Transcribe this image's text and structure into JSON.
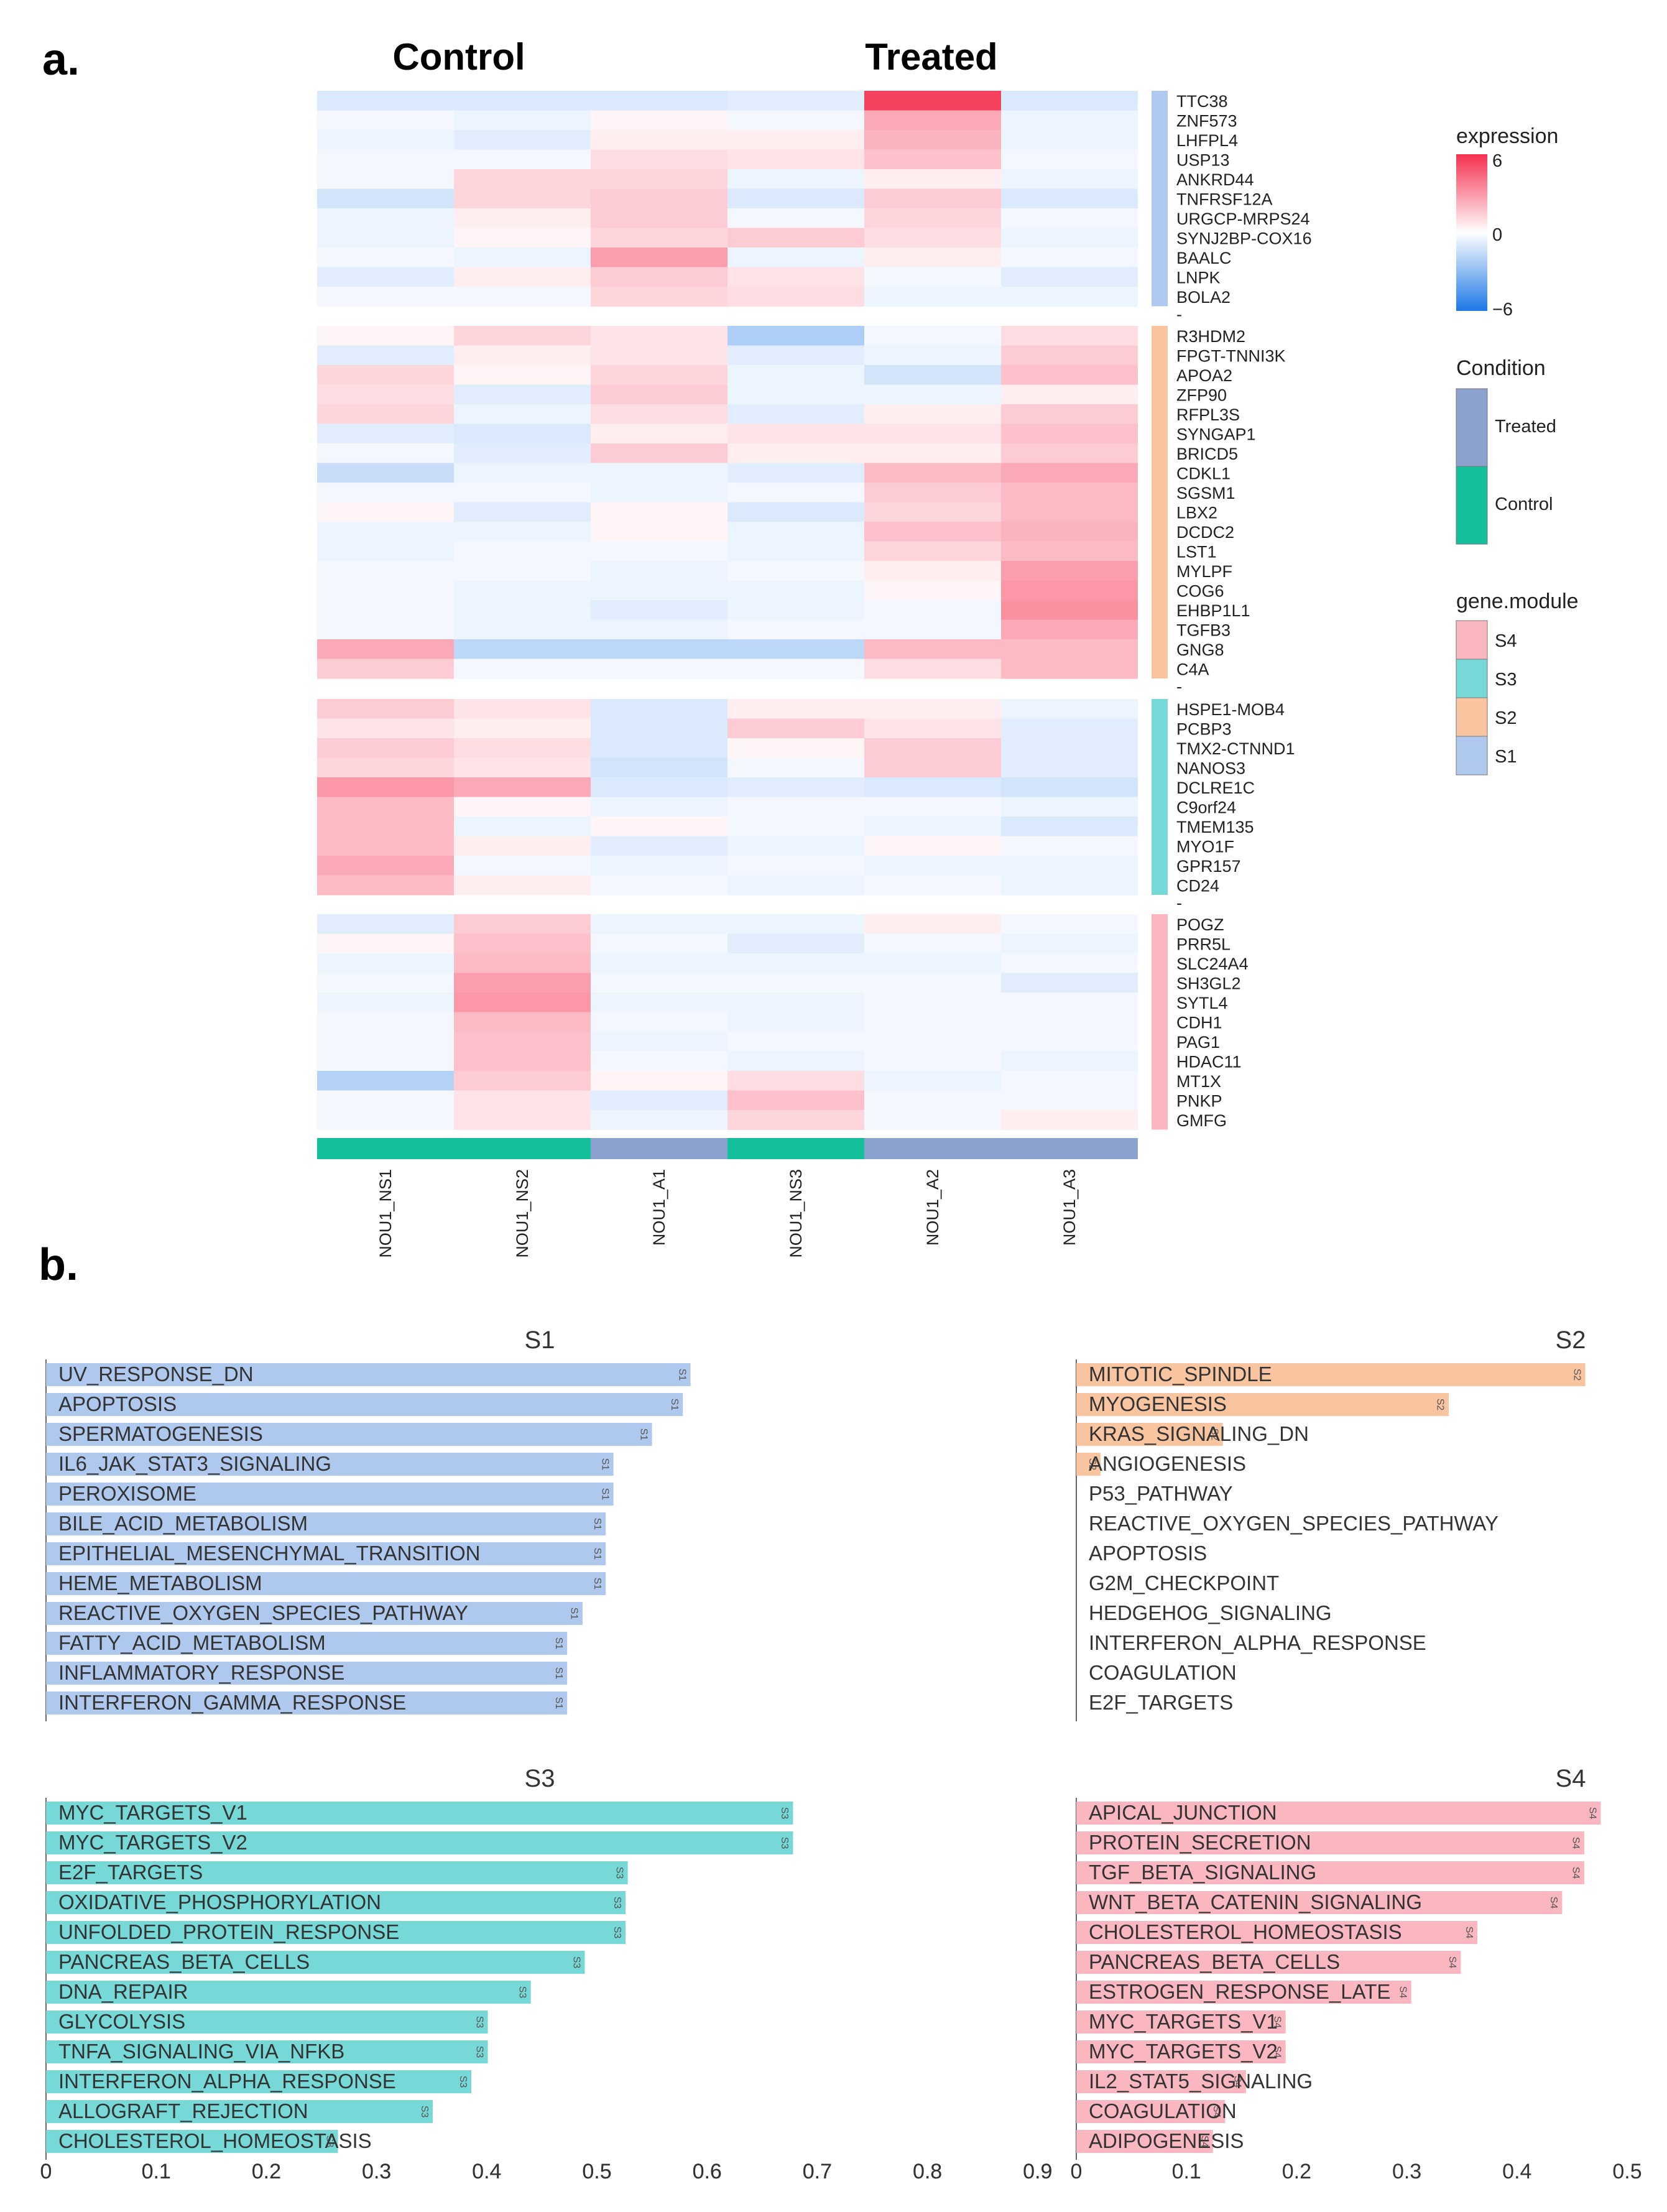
{
  "panels": {
    "a_label": "a.",
    "b_label": "b."
  },
  "colors": {
    "module": {
      "S1": "#aec8ee",
      "S2": "#f9c4a0",
      "S3": "#76d9d7",
      "S4": "#fbb7c0"
    },
    "condition": {
      "Treated": "#8ca2ce",
      "Control": "#14bf9b"
    },
    "expression_high": "#f5304f",
    "expression_mid": "#ffffff",
    "expression_low": "#1e78e6"
  },
  "chart_data": [
    {
      "type": "heatmap",
      "group_headers": [
        "Control",
        "Treated"
      ],
      "samples": [
        "NOU1_NS1",
        "NOU1_NS2",
        "NOU1_A1",
        "NOU1_NS3",
        "NOU1_A2",
        "NOU1_A3"
      ],
      "conditions": [
        "Control",
        "Control",
        "Treated",
        "Control",
        "Treated",
        "Treated"
      ],
      "separator_label": "-",
      "value_range": [
        -6,
        6
      ],
      "legend": {
        "expression_title": "expression",
        "expression_ticks": [
          "6",
          "0",
          "−6"
        ],
        "condition_title": "Condition",
        "condition_items": [
          "Treated",
          "Control"
        ],
        "module_title": "gene.module",
        "module_items": [
          "S4",
          "S3",
          "S2",
          "S1"
        ]
      },
      "blocks": [
        {
          "module": "S1",
          "genes": [
            "TTC38",
            "ZNF573",
            "LHFPL4",
            "USP13",
            "ANKRD44",
            "TNFRSF12A",
            "URGCP-MRPS24",
            "SYNJ2BP-COX16",
            "BAALC",
            "LNPK",
            "BOLA2"
          ],
          "values": [
            [
              -1,
              -1,
              -1,
              -0.8,
              5.5,
              -1
            ],
            [
              -0.3,
              -0.5,
              0.3,
              -0.3,
              2.5,
              -0.5
            ],
            [
              -0.5,
              -0.8,
              0.5,
              0.5,
              2.2,
              -0.5
            ],
            [
              -0.3,
              -0.3,
              1.0,
              0.8,
              1.8,
              -0.3
            ],
            [
              -0.3,
              1.2,
              1.2,
              -0.5,
              0.5,
              -0.5
            ],
            [
              -1.2,
              1.2,
              1.5,
              -1.0,
              1.5,
              -1.0
            ],
            [
              -0.5,
              0.5,
              1.5,
              -0.3,
              1.2,
              -0.3
            ],
            [
              -0.5,
              0.3,
              1.2,
              1.5,
              1.0,
              -0.5
            ],
            [
              -0.3,
              -0.5,
              2.8,
              -0.5,
              0.5,
              -0.3
            ],
            [
              -0.8,
              0.5,
              1.5,
              0.8,
              -0.3,
              -0.8
            ],
            [
              -0.3,
              -0.3,
              1.2,
              1.0,
              -0.5,
              -0.5
            ]
          ]
        },
        {
          "module": "S2",
          "genes": [
            "R3HDM2",
            "FPGT-TNNI3K",
            "APOA2",
            "ZFP90",
            "RFPL3S",
            "SYNGAP1",
            "BRICD5",
            "CDKL1",
            "SGSM1",
            "LBX2",
            "DCDC2",
            "LST1",
            "MYLPF",
            "COG6",
            "EHBP1L1",
            "TGFB3",
            "GNG8",
            "C4A"
          ],
          "values": [
            [
              0.3,
              1.2,
              0.8,
              -2.2,
              -0.3,
              1.0
            ],
            [
              -0.8,
              0.5,
              0.8,
              -0.8,
              -0.5,
              1.5
            ],
            [
              1.2,
              0.3,
              1.2,
              -0.5,
              -1.2,
              1.8
            ],
            [
              1.0,
              -0.8,
              1.5,
              -0.5,
              -0.5,
              0.5
            ],
            [
              1.2,
              -0.5,
              1.0,
              -0.8,
              0.5,
              1.5
            ],
            [
              -0.8,
              -1.0,
              0.5,
              0.8,
              0.8,
              1.8
            ],
            [
              -0.3,
              -0.8,
              1.5,
              0.5,
              0.5,
              1.5
            ],
            [
              -1.5,
              -0.5,
              -0.5,
              -0.8,
              2.0,
              2.5
            ],
            [
              -0.3,
              -0.3,
              -0.5,
              -0.3,
              1.5,
              2.0
            ],
            [
              0.3,
              -0.8,
              0.3,
              -1.0,
              1.2,
              2.0
            ],
            [
              -0.5,
              -0.5,
              0.3,
              -0.5,
              1.8,
              2.2
            ],
            [
              -0.5,
              -0.3,
              -0.3,
              -0.5,
              1.2,
              2.0
            ],
            [
              -0.3,
              -0.3,
              -0.5,
              -0.3,
              0.5,
              2.8
            ],
            [
              -0.3,
              -0.5,
              -0.5,
              -0.5,
              0.3,
              3.0
            ],
            [
              -0.3,
              -0.5,
              -0.8,
              -0.5,
              -0.3,
              3.2
            ],
            [
              -0.3,
              -0.5,
              -0.5,
              -0.3,
              -0.3,
              2.5
            ],
            [
              2.5,
              -1.8,
              -1.8,
              -1.8,
              2.0,
              2.0
            ],
            [
              1.5,
              -0.3,
              -0.3,
              -0.3,
              1.0,
              2.0
            ]
          ]
        },
        {
          "module": "S3",
          "genes": [
            "HSPE1-MOB4",
            "PCBP3",
            "TMX2-CTNND1",
            "NANOS3",
            "DCLRE1C",
            "C9orf24",
            "TMEM135",
            "MYO1F",
            "GPR157",
            "CD24"
          ],
          "values": [
            [
              1.5,
              0.8,
              -1.0,
              0.5,
              0.5,
              -0.5
            ],
            [
              0.8,
              0.5,
              -1.0,
              1.5,
              0.8,
              -0.8
            ],
            [
              1.5,
              1.0,
              -1.0,
              0.3,
              1.5,
              -0.8
            ],
            [
              1.2,
              0.8,
              -1.2,
              -0.3,
              1.5,
              -0.8
            ],
            [
              3.0,
              2.5,
              -1.0,
              -0.8,
              -1.0,
              -1.2
            ],
            [
              2.0,
              0.3,
              -0.5,
              -0.3,
              -0.3,
              -0.5
            ],
            [
              2.0,
              -0.5,
              0.3,
              -0.3,
              -0.5,
              -1.0
            ],
            [
              2.0,
              0.5,
              -0.8,
              -0.5,
              0.3,
              -0.3
            ],
            [
              2.5,
              -0.3,
              -0.5,
              -0.3,
              -0.5,
              -0.5
            ],
            [
              2.0,
              0.5,
              -0.3,
              -0.5,
              -0.3,
              -0.5
            ]
          ]
        },
        {
          "module": "S4",
          "genes": [
            "POGZ",
            "PRR5L",
            "SLC24A4",
            "SH3GL2",
            "SYTL4",
            "CDH1",
            "PAG1",
            "HDAC11",
            "MT1X",
            "PNKP",
            "GMFG"
          ],
          "values": [
            [
              -0.8,
              1.5,
              -0.5,
              -0.5,
              0.5,
              -0.3
            ],
            [
              0.3,
              1.8,
              -0.3,
              -0.8,
              -0.3,
              -0.5
            ],
            [
              -0.5,
              2.0,
              -0.5,
              -0.5,
              -0.5,
              -0.3
            ],
            [
              -0.3,
              2.8,
              -0.3,
              -0.3,
              -0.3,
              -0.8
            ],
            [
              -0.5,
              3.0,
              -0.5,
              -0.5,
              -0.3,
              -0.3
            ],
            [
              -0.3,
              2.0,
              -0.3,
              -0.5,
              -0.3,
              -0.3
            ],
            [
              -0.3,
              1.8,
              -0.5,
              -0.3,
              -0.3,
              -0.3
            ],
            [
              -0.3,
              1.8,
              -0.3,
              -0.5,
              -0.3,
              -0.5
            ],
            [
              -2.0,
              1.5,
              0.3,
              1.0,
              -0.5,
              -0.3
            ],
            [
              -0.3,
              0.8,
              -0.8,
              1.8,
              -0.3,
              -0.3
            ],
            [
              -0.3,
              0.8,
              -0.5,
              1.2,
              -0.3,
              0.5
            ]
          ]
        }
      ]
    },
    {
      "type": "bar",
      "orientation": "horizontal",
      "title": "S1",
      "tag": "S1",
      "xlim": [
        0,
        0.9
      ],
      "xticks": [
        "0",
        "0.1",
        "0.2",
        "0.3",
        "0.4",
        "0.5",
        "0.6",
        "0.7",
        "0.8",
        "0.9"
      ],
      "categories": [
        "UV_RESPONSE_DN",
        "APOPTOSIS",
        "SPERMATOGENESIS",
        "IL6_JAK_STAT3_SIGNALING",
        "PEROXISOME",
        "BILE_ACID_METABOLISM",
        "EPITHELIAL_MESENCHYMAL_TRANSITION",
        "HEME_METABOLISM",
        "REACTIVE_OXYGEN_SPECIES_PATHWAY",
        "FATTY_ACID_METABOLISM",
        "INFLAMMATORY_RESPONSE",
        "INTERFERON_GAMMA_RESPONSE"
      ],
      "values": [
        0.585,
        0.578,
        0.55,
        0.515,
        0.515,
        0.508,
        0.508,
        0.508,
        0.487,
        0.473,
        0.473,
        0.473
      ]
    },
    {
      "type": "bar",
      "orientation": "horizontal",
      "title": "S2",
      "tag": "S2",
      "xlim": [
        0,
        0.5
      ],
      "categories": [
        "MITOTIC_SPINDLE",
        "MYOGENESIS",
        "KRAS_SIGNALING_DN",
        "ANGIOGENESIS",
        "P53_PATHWAY",
        "REACTIVE_OXYGEN_SPECIES_PATHWAY",
        "APOPTOSIS",
        "G2M_CHECKPOINT",
        "HEDGEHOG_SIGNALING",
        "INTERFERON_ALPHA_RESPONSE",
        "COAGULATION",
        "E2F_TARGETS"
      ],
      "values": [
        0.462,
        0.338,
        0.133,
        0.022,
        0,
        0,
        0,
        0,
        0,
        0,
        0,
        0
      ]
    },
    {
      "type": "bar",
      "orientation": "horizontal",
      "title": "S3",
      "tag": "S3",
      "xlim": [
        0,
        0.9
      ],
      "xticks": [
        "0",
        "0.1",
        "0.2",
        "0.3",
        "0.4",
        "0.5",
        "0.6",
        "0.7",
        "0.8",
        "0.9"
      ],
      "categories": [
        "MYC_TARGETS_V1",
        "MYC_TARGETS_V2",
        "E2F_TARGETS",
        "OXIDATIVE_PHOSPHORYLATION",
        "UNFOLDED_PROTEIN_RESPONSE",
        "PANCREAS_BETA_CELLS",
        "DNA_REPAIR",
        "GLYCOLYSIS",
        "TNFA_SIGNALING_VIA_NFKB",
        "INTERFERON_ALPHA_RESPONSE",
        "ALLOGRAFT_REJECTION",
        "CHOLESTEROL_HOMEOSTASIS"
      ],
      "values": [
        0.678,
        0.678,
        0.528,
        0.526,
        0.526,
        0.489,
        0.44,
        0.401,
        0.401,
        0.386,
        0.351,
        0.265
      ]
    },
    {
      "type": "bar",
      "orientation": "horizontal",
      "title": "S4",
      "tag": "S4",
      "xlim": [
        0,
        0.5
      ],
      "xticks": [
        "0",
        "0.1",
        "0.2",
        "0.3",
        "0.4",
        "0.5"
      ],
      "categories": [
        "APICAL_JUNCTION",
        "PROTEIN_SECRETION",
        "TGF_BETA_SIGNALING",
        "WNT_BETA_CATENIN_SIGNALING",
        "CHOLESTEROL_HOMEOSTASIS",
        "PANCREAS_BETA_CELLS",
        "ESTROGEN_RESPONSE_LATE",
        "MYC_TARGETS_V1",
        "MYC_TARGETS_V2",
        "IL2_STAT5_SIGNALING",
        "COAGULATION",
        "ADIPOGENESIS"
      ],
      "values": [
        0.476,
        0.461,
        0.461,
        0.441,
        0.364,
        0.349,
        0.304,
        0.19,
        0.19,
        0.154,
        0.135,
        0.124
      ]
    }
  ]
}
